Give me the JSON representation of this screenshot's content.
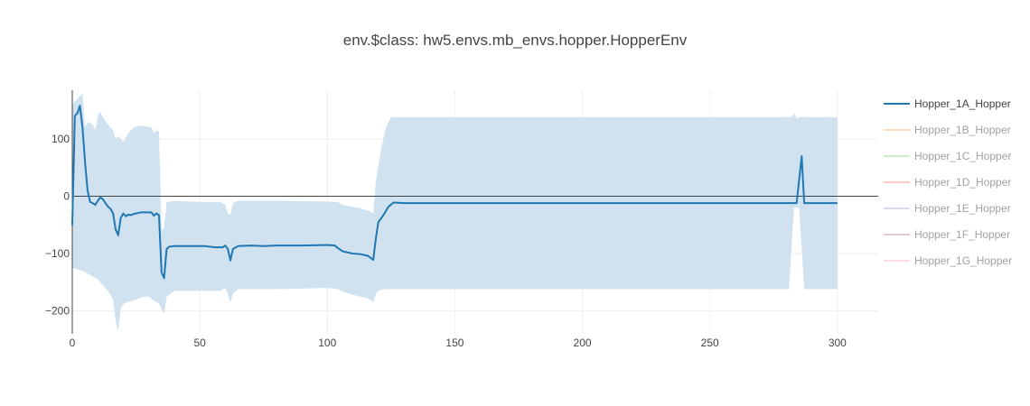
{
  "chart_data": {
    "type": "line",
    "title": "env.$class: hw5.envs.mb_envs.hopper.HopperEnv",
    "xlabel": "",
    "ylabel": "",
    "xlim": [
      0,
      316
    ],
    "ylim": [
      -240,
      185
    ],
    "x_ticks": [
      0,
      50,
      100,
      150,
      200,
      250,
      300
    ],
    "y_ticks": [
      -200,
      -100,
      0,
      100
    ],
    "x_tick_labels": [
      "0",
      "50",
      "100",
      "150",
      "200",
      "250",
      "300"
    ],
    "y_tick_labels": [
      "−200",
      "−100",
      "0",
      "100"
    ],
    "grid": true,
    "legend_position": "right",
    "series": [
      {
        "name": "Hopper_1A_Hopper",
        "color": "#1f77b4",
        "band_color": "#d0e2f0",
        "active": true,
        "points": [
          [
            0,
            -50
          ],
          [
            1,
            140
          ],
          [
            2,
            145
          ],
          [
            3,
            158
          ],
          [
            4,
            120
          ],
          [
            5,
            60
          ],
          [
            6,
            10
          ],
          [
            7,
            -10
          ],
          [
            8,
            -12
          ],
          [
            9,
            -15
          ],
          [
            10,
            -8
          ],
          [
            11,
            -2
          ],
          [
            12,
            -5
          ],
          [
            13,
            -12
          ],
          [
            14,
            -18
          ],
          [
            15,
            -22
          ],
          [
            16,
            -30
          ],
          [
            17,
            -58
          ],
          [
            18,
            -68
          ],
          [
            19,
            -38
          ],
          [
            20,
            -30
          ],
          [
            21,
            -35
          ],
          [
            22,
            -32
          ],
          [
            23,
            -33
          ],
          [
            24,
            -31
          ],
          [
            25,
            -30
          ],
          [
            26,
            -29
          ],
          [
            27,
            -28
          ],
          [
            28,
            -28
          ],
          [
            29,
            -28
          ],
          [
            30,
            -28
          ],
          [
            31,
            -28
          ],
          [
            32,
            -34
          ],
          [
            33,
            -30
          ],
          [
            34,
            -33
          ],
          [
            35,
            -133
          ],
          [
            36,
            -143
          ],
          [
            37,
            -92
          ],
          [
            38,
            -88
          ],
          [
            40,
            -87
          ],
          [
            45,
            -87
          ],
          [
            50,
            -87
          ],
          [
            52,
            -87
          ],
          [
            54,
            -88
          ],
          [
            56,
            -89
          ],
          [
            58,
            -89
          ],
          [
            59,
            -89
          ],
          [
            60,
            -86
          ],
          [
            61,
            -92
          ],
          [
            62,
            -112
          ],
          [
            63,
            -92
          ],
          [
            65,
            -87
          ],
          [
            70,
            -86
          ],
          [
            75,
            -87
          ],
          [
            80,
            -86
          ],
          [
            90,
            -86
          ],
          [
            100,
            -85
          ],
          [
            103,
            -86
          ],
          [
            104,
            -90
          ],
          [
            106,
            -96
          ],
          [
            110,
            -100
          ],
          [
            113,
            -101
          ],
          [
            116,
            -104
          ],
          [
            118,
            -111
          ],
          [
            119,
            -75
          ],
          [
            120,
            -45
          ],
          [
            122,
            -33
          ],
          [
            124,
            -18
          ],
          [
            126,
            -11
          ],
          [
            130,
            -12
          ],
          [
            150,
            -12
          ],
          [
            200,
            -12
          ],
          [
            250,
            -12
          ],
          [
            280,
            -12
          ],
          [
            284,
            -12
          ],
          [
            286,
            70
          ],
          [
            287,
            -12
          ],
          [
            300,
            -12
          ]
        ],
        "band_upper": [
          [
            0,
            160
          ],
          [
            2,
            170
          ],
          [
            4,
            180
          ],
          [
            5,
            120
          ],
          [
            6,
            130
          ],
          [
            7,
            128
          ],
          [
            8,
            125
          ],
          [
            9,
            115
          ],
          [
            10,
            140
          ],
          [
            11,
            147
          ],
          [
            12,
            138
          ],
          [
            14,
            125
          ],
          [
            16,
            115
          ],
          [
            17,
            100
          ],
          [
            18,
            105
          ],
          [
            20,
            95
          ],
          [
            22,
            110
          ],
          [
            24,
            120
          ],
          [
            26,
            123
          ],
          [
            28,
            123
          ],
          [
            30,
            121
          ],
          [
            31,
            120
          ],
          [
            32,
            110
          ],
          [
            33,
            115
          ],
          [
            34,
            113
          ],
          [
            35,
            -60
          ],
          [
            36,
            -55
          ],
          [
            37,
            -10
          ],
          [
            40,
            -8
          ],
          [
            50,
            -10
          ],
          [
            58,
            -10
          ],
          [
            60,
            -15
          ],
          [
            61,
            -30
          ],
          [
            62,
            -32
          ],
          [
            63,
            -12
          ],
          [
            65,
            -8
          ],
          [
            80,
            -8
          ],
          [
            100,
            -9
          ],
          [
            104,
            -10
          ],
          [
            106,
            -15
          ],
          [
            108,
            -17
          ],
          [
            112,
            -20
          ],
          [
            116,
            -25
          ],
          [
            118,
            -30
          ],
          [
            119,
            25
          ],
          [
            121,
            80
          ],
          [
            123,
            120
          ],
          [
            125,
            138
          ],
          [
            130,
            138
          ],
          [
            200,
            138
          ],
          [
            250,
            138
          ],
          [
            282,
            138
          ],
          [
            283,
            145
          ],
          [
            284,
            135
          ],
          [
            285,
            138
          ],
          [
            300,
            138
          ]
        ],
        "band_lower": [
          [
            0,
            -125
          ],
          [
            4,
            -130
          ],
          [
            6,
            -135
          ],
          [
            8,
            -140
          ],
          [
            10,
            -145
          ],
          [
            12,
            -155
          ],
          [
            14,
            -165
          ],
          [
            16,
            -180
          ],
          [
            17,
            -218
          ],
          [
            18,
            -235
          ],
          [
            19,
            -195
          ],
          [
            20,
            -188
          ],
          [
            22,
            -184
          ],
          [
            24,
            -182
          ],
          [
            26,
            -178
          ],
          [
            28,
            -175
          ],
          [
            30,
            -175
          ],
          [
            32,
            -182
          ],
          [
            34,
            -187
          ],
          [
            35,
            -197
          ],
          [
            36,
            -205
          ],
          [
            37,
            -175
          ],
          [
            40,
            -165
          ],
          [
            50,
            -165
          ],
          [
            58,
            -165
          ],
          [
            60,
            -160
          ],
          [
            61,
            -170
          ],
          [
            62,
            -185
          ],
          [
            63,
            -170
          ],
          [
            65,
            -162
          ],
          [
            80,
            -162
          ],
          [
            100,
            -160
          ],
          [
            104,
            -162
          ],
          [
            106,
            -166
          ],
          [
            110,
            -172
          ],
          [
            116,
            -178
          ],
          [
            118,
            -185
          ],
          [
            119,
            -170
          ],
          [
            120,
            -165
          ],
          [
            122,
            -162
          ],
          [
            125,
            -162
          ],
          [
            200,
            -162
          ],
          [
            250,
            -162
          ],
          [
            281,
            -162
          ],
          [
            283,
            -20
          ],
          [
            285,
            -20
          ],
          [
            287,
            -162
          ],
          [
            300,
            -162
          ]
        ]
      },
      {
        "name": "Hopper_1B_Hopper",
        "color": "#ffbb78",
        "active": false
      },
      {
        "name": "Hopper_1C_Hopper",
        "color": "#98df8a",
        "active": false
      },
      {
        "name": "Hopper_1D_Hopper",
        "color": "#ff9896",
        "active": false
      },
      {
        "name": "Hopper_1E_Hopper",
        "color": "#c5b0d5",
        "active": false
      },
      {
        "name": "Hopper_1F_Hopper",
        "color": "#c49c94",
        "active": false
      },
      {
        "name": "Hopper_1G_Hopper",
        "color": "#f7b6d2",
        "active": false
      }
    ]
  }
}
